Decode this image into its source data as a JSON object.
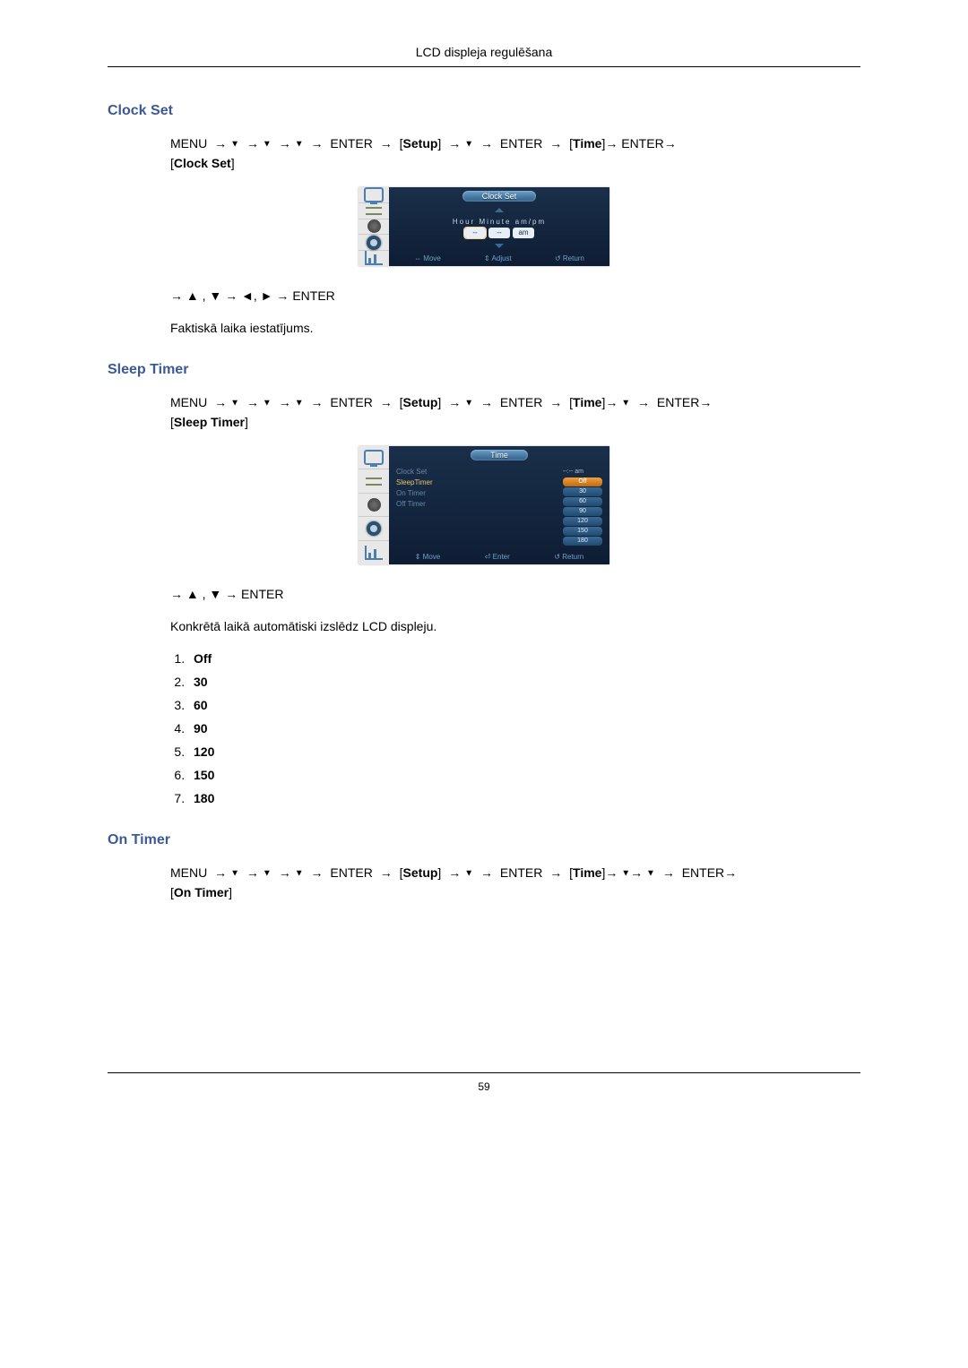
{
  "header": {
    "title": "LCD displeja regulēšana"
  },
  "page_number": "59",
  "sections": {
    "clock_set": {
      "heading": "Clock Set",
      "menu_path_parts": {
        "menu": "MENU",
        "enter": "ENTER",
        "setup": "Setup",
        "time": "Time",
        "target": "Clock Set"
      },
      "post_nav": "→ ▲ , ▼ → ◄, ► → ENTER",
      "description": "Faktiskā laika iestatījums.",
      "osd": {
        "title": "Clock Set",
        "labels": "Hour  Minute  am/pm",
        "hour": "--",
        "minute": "--",
        "ampm": "am",
        "footer": {
          "move": "⇔ Move",
          "adjust": "⇕ Adjust",
          "return": "↺ Return"
        }
      }
    },
    "sleep_timer": {
      "heading": "Sleep Timer",
      "menu_path_parts": {
        "menu": "MENU",
        "enter": "ENTER",
        "setup": "Setup",
        "time": "Time",
        "target": "Sleep Timer"
      },
      "post_nav": "→ ▲ , ▼ → ENTER",
      "description": "Konkrētā laikā automātiski izslēdz LCD displeju.",
      "options": [
        "Off",
        "30",
        "60",
        "90",
        "120",
        "150",
        "180"
      ],
      "osd": {
        "title": "Time",
        "items": {
          "clock_set": "Clock Set",
          "sleep_timer": "SleepTimer",
          "on_timer": "On Timer",
          "off_timer": "Off Timer"
        },
        "clock_val": "--:-- am",
        "dropdown": [
          "Off",
          "30",
          "60",
          "90",
          "120",
          "150",
          "180"
        ],
        "footer": {
          "move": "⇕ Move",
          "enter": "⏎ Enter",
          "return": "↺ Return"
        }
      }
    },
    "on_timer": {
      "heading": "On Timer",
      "menu_path_parts": {
        "menu": "MENU",
        "enter": "ENTER",
        "setup": "Setup",
        "time": "Time",
        "target": "On Timer"
      }
    }
  }
}
